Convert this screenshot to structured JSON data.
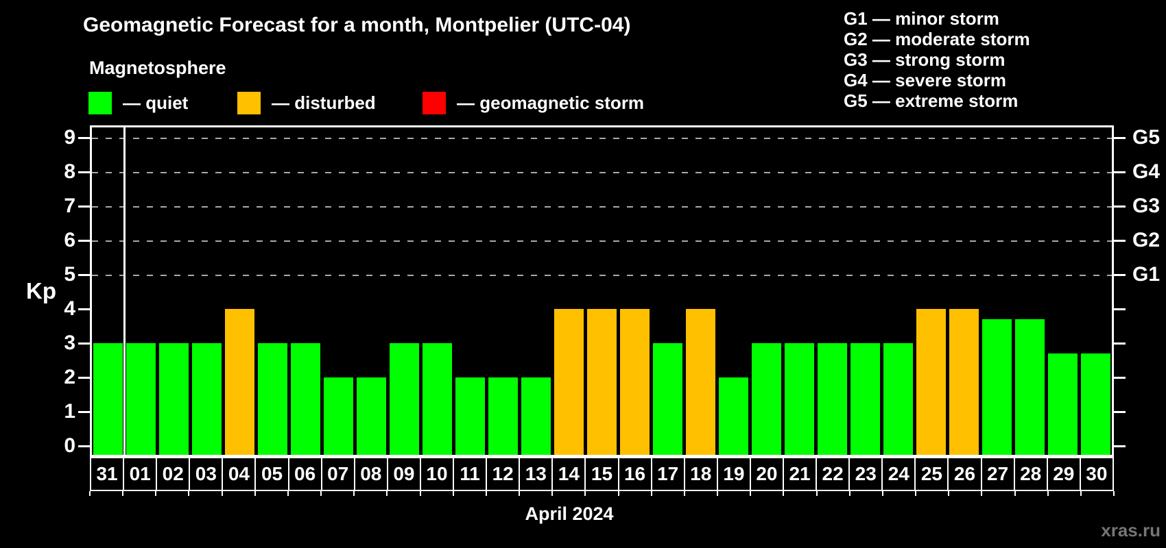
{
  "title": "Geomagnetic Forecast for a month, Montpelier (UTC-04)",
  "subtitle": "Magnetosphere",
  "legend": {
    "items": [
      {
        "key": "quiet",
        "label": "— quiet",
        "color": "#00ff00"
      },
      {
        "key": "disturbed",
        "label": "— disturbed",
        "color": "#ffc000"
      },
      {
        "key": "storm",
        "label": "— geomagnetic storm",
        "color": "#ff0000"
      }
    ]
  },
  "storm_scale_legend": [
    "G1 — minor storm",
    "G2 — moderate storm",
    "G3 — strong storm",
    "G4 — severe storm",
    "G5 — extreme storm"
  ],
  "axes": {
    "y_left_label": "Kp",
    "y_ticks": [
      0,
      1,
      2,
      3,
      4,
      5,
      6,
      7,
      8,
      9
    ],
    "right_scale": [
      {
        "kp": 5,
        "label": "G1"
      },
      {
        "kp": 6,
        "label": "G2"
      },
      {
        "kp": 7,
        "label": "G3"
      },
      {
        "kp": 8,
        "label": "G4"
      },
      {
        "kp": 9,
        "label": "G5"
      }
    ],
    "x_label": "April 2024"
  },
  "watermark": "xras.ru",
  "chart_data": {
    "type": "bar",
    "title": "Geomagnetic Forecast for a month, Montpelier (UTC-04)",
    "xlabel": "April 2024",
    "ylabel": "Kp",
    "ylim": [
      0,
      9
    ],
    "grid_levels_kp": [
      5,
      6,
      7,
      8,
      9
    ],
    "legend_position": "top-left",
    "separator_after_category": "31",
    "categories": [
      "31",
      "01",
      "02",
      "03",
      "04",
      "05",
      "06",
      "07",
      "08",
      "09",
      "10",
      "11",
      "12",
      "13",
      "14",
      "15",
      "16",
      "17",
      "18",
      "19",
      "20",
      "21",
      "22",
      "23",
      "24",
      "25",
      "26",
      "27",
      "28",
      "29",
      "30"
    ],
    "values": [
      3,
      3,
      3,
      3,
      4,
      3,
      3,
      2,
      2,
      3,
      3,
      2,
      2,
      2,
      4,
      4,
      4,
      3,
      4,
      2,
      3,
      3,
      3,
      3,
      3,
      4,
      4,
      3.7,
      3.7,
      2.7,
      2.7
    ],
    "statuses": [
      "quiet",
      "quiet",
      "quiet",
      "quiet",
      "disturbed",
      "quiet",
      "quiet",
      "quiet",
      "quiet",
      "quiet",
      "quiet",
      "quiet",
      "quiet",
      "quiet",
      "disturbed",
      "disturbed",
      "disturbed",
      "quiet",
      "disturbed",
      "quiet",
      "quiet",
      "quiet",
      "quiet",
      "quiet",
      "quiet",
      "disturbed",
      "disturbed",
      "quiet",
      "quiet",
      "quiet",
      "quiet"
    ]
  }
}
